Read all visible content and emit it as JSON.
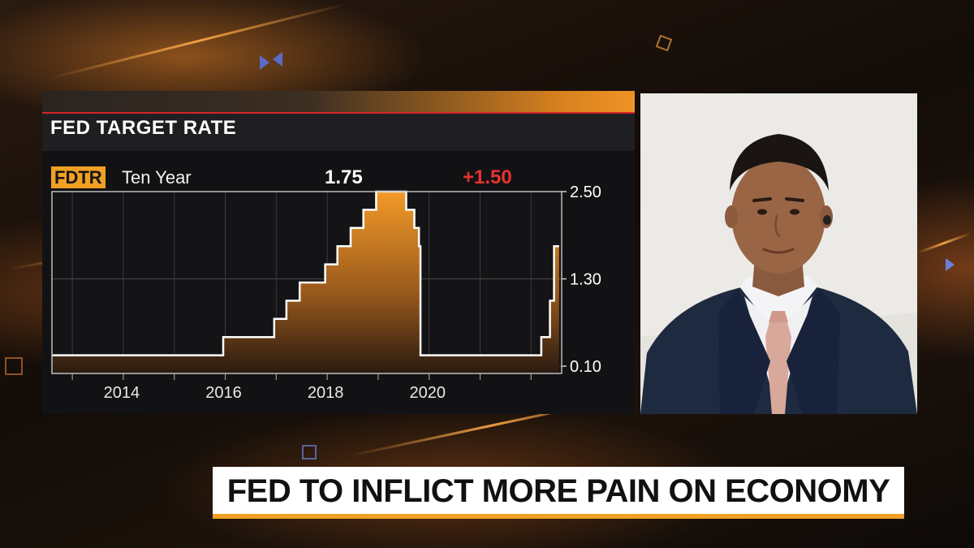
{
  "panel": {
    "title": "FED TARGET RATE",
    "ticker": "FDTR",
    "period": "Ten Year",
    "last_value": "1.75",
    "change": "+1.50"
  },
  "headline": "FED TO INFLICT MORE PAIN ON ECONOMY",
  "colors": {
    "accent_orange": "#f0a023",
    "change_red": "#e8322f",
    "panel_bg": "#121214",
    "line_white": "#ffffff"
  },
  "chart_data": {
    "type": "area",
    "title": "FED TARGET RATE",
    "xlabel": "",
    "ylabel": "",
    "x_ticks": [
      "2014",
      "2016",
      "2018",
      "2020"
    ],
    "y_ticks": [
      "2.50",
      "1.30",
      "0.10"
    ],
    "xlim": [
      2012.6,
      2022.6
    ],
    "ylim": [
      0.0,
      2.5
    ],
    "y_axis_side": "right",
    "grid": true,
    "series": [
      {
        "x": [
          2012.6,
          2015.96,
          2016.96,
          2017.2,
          2017.46,
          2017.96,
          2018.2,
          2018.46,
          2018.71,
          2018.96,
          2019.55,
          2019.71,
          2019.8,
          2019.83,
          2022.2,
          2022.37,
          2022.45,
          2022.55
        ],
        "y": [
          0.25,
          0.5,
          0.75,
          1.0,
          1.25,
          1.5,
          1.75,
          2.0,
          2.25,
          2.5,
          2.25,
          2.0,
          1.75,
          0.25,
          0.5,
          1.0,
          1.75,
          1.75
        ]
      }
    ]
  }
}
